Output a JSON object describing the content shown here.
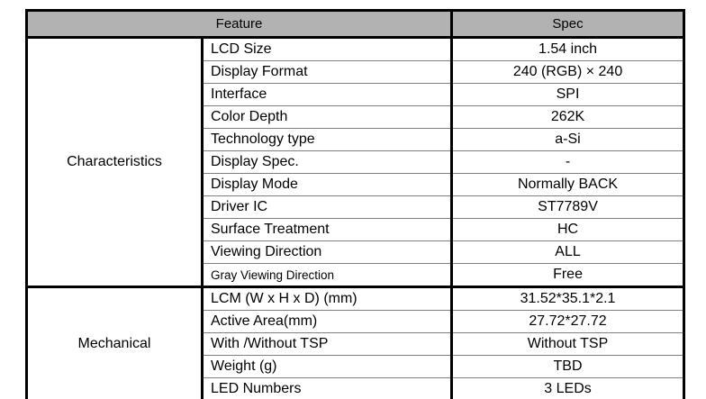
{
  "table": {
    "header": {
      "feature_label": "Feature",
      "spec_label": "Spec",
      "background_color": "#b2b2b2"
    },
    "border_colors": {
      "thick": "#000000",
      "thin": "#7f7f7f"
    },
    "sections": [
      {
        "label": "Characteristics",
        "rows": [
          {
            "feature": "LCD Size",
            "spec": "1.54 inch"
          },
          {
            "feature": "Display Format",
            "spec": "240 (RGB) × 240"
          },
          {
            "feature": "Interface",
            "spec": "SPI"
          },
          {
            "feature": "Color Depth",
            "spec": "262K"
          },
          {
            "feature": "Technology type",
            "spec": "a-Si"
          },
          {
            "feature": "Display Spec.",
            "spec": "-"
          },
          {
            "feature": "Display Mode",
            "spec": "Normally BACK"
          },
          {
            "feature": "Driver IC",
            "spec": "ST7789V"
          },
          {
            "feature": "Surface Treatment",
            "spec": "HC"
          },
          {
            "feature": "Viewing Direction",
            "spec": "ALL"
          },
          {
            "feature": "Gray Viewing Direction",
            "spec": "Free"
          }
        ]
      },
      {
        "label": "Mechanical",
        "rows": [
          {
            "feature": "LCM (W x H x D) (mm)",
            "spec": "31.52*35.1*2.1"
          },
          {
            "feature": "Active Area(mm)",
            "spec": "27.72*27.72"
          },
          {
            "feature": "With /Without TSP",
            "spec": "Without TSP"
          },
          {
            "feature": "Weight (g)",
            "spec": "TBD"
          },
          {
            "feature": "LED Numbers",
            "spec": "3 LEDs"
          }
        ]
      }
    ]
  }
}
